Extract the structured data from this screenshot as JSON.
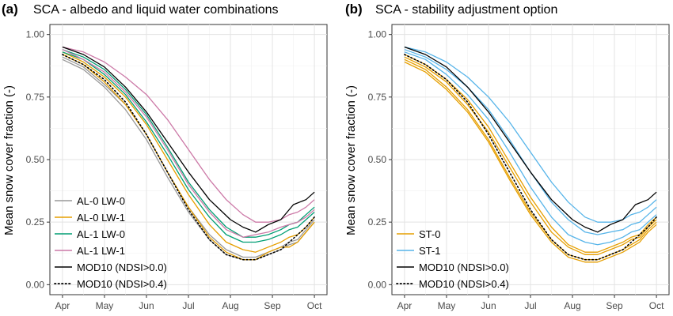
{
  "chart_data": [
    {
      "type": "line",
      "panel_label": "(a)",
      "title": "SCA - albedo and liquid water combinations",
      "xlabel": "",
      "ylabel": "Mean snow cover fraction (-)",
      "x_ticks": [
        "Apr",
        "May",
        "Jun",
        "Jul",
        "Aug",
        "Sep",
        "Oct"
      ],
      "xlim": [
        0,
        6
      ],
      "ylim": [
        -0.04,
        1.04
      ],
      "y_ticks": [
        "0.00",
        "0.25",
        "0.50",
        "0.75",
        "1.00"
      ],
      "y_tick_values": [
        0.0,
        0.25,
        0.5,
        0.75,
        1.0
      ],
      "grid": true,
      "legend_position": "bottom-left",
      "series": [
        {
          "name": "AL-0 LW-0",
          "color": "#999999",
          "style": "solid",
          "x": [
            0,
            0.5,
            1,
            1.5,
            2,
            2.5,
            3,
            3.5,
            3.9,
            4.3,
            4.6,
            4.9,
            5.2,
            5.4,
            5.6,
            5.8,
            6
          ],
          "y": [
            0.9,
            0.86,
            0.79,
            0.7,
            0.58,
            0.43,
            0.29,
            0.18,
            0.12,
            0.1,
            0.1,
            0.12,
            0.14,
            0.16,
            0.17,
            0.21,
            0.25
          ]
        },
        {
          "name": "AL-0 LW-0",
          "color": "#999999",
          "style": "solid",
          "x": [
            0,
            0.5,
            1,
            1.5,
            2,
            2.5,
            3,
            3.5,
            3.9,
            4.3,
            4.6,
            4.9,
            5.2,
            5.4,
            5.6,
            5.8,
            6
          ],
          "y": [
            0.91,
            0.87,
            0.8,
            0.72,
            0.6,
            0.45,
            0.31,
            0.2,
            0.14,
            0.11,
            0.11,
            0.13,
            0.15,
            0.17,
            0.18,
            0.22,
            0.26
          ]
        },
        {
          "name": "AL-0 LW-1",
          "color": "#E69F00",
          "style": "solid",
          "x": [
            0,
            0.5,
            1,
            1.5,
            2,
            2.5,
            3,
            3.5,
            3.9,
            4.3,
            4.6,
            4.9,
            5.2,
            5.4,
            5.6,
            5.8,
            6
          ],
          "y": [
            0.92,
            0.88,
            0.81,
            0.72,
            0.6,
            0.45,
            0.31,
            0.19,
            0.13,
            0.1,
            0.1,
            0.13,
            0.15,
            0.15,
            0.17,
            0.21,
            0.25
          ]
        },
        {
          "name": "AL-0 LW-1",
          "color": "#E69F00",
          "style": "solid",
          "x": [
            0,
            0.5,
            1,
            1.5,
            2,
            2.5,
            3,
            3.5,
            3.9,
            4.3,
            4.6,
            4.9,
            5.2,
            5.4,
            5.6,
            5.8,
            6
          ],
          "y": [
            0.93,
            0.89,
            0.83,
            0.75,
            0.64,
            0.5,
            0.36,
            0.24,
            0.17,
            0.14,
            0.13,
            0.15,
            0.17,
            0.19,
            0.2,
            0.23,
            0.27
          ]
        },
        {
          "name": "AL-1 LW-0",
          "color": "#009E73",
          "style": "solid",
          "x": [
            0,
            0.5,
            1,
            1.5,
            2,
            2.5,
            3,
            3.5,
            3.9,
            4.3,
            4.6,
            4.9,
            5.2,
            5.4,
            5.6,
            5.8,
            6
          ],
          "y": [
            0.93,
            0.9,
            0.84,
            0.76,
            0.65,
            0.52,
            0.38,
            0.27,
            0.2,
            0.17,
            0.17,
            0.18,
            0.2,
            0.22,
            0.23,
            0.26,
            0.29
          ]
        },
        {
          "name": "AL-1 LW-0",
          "color": "#009E73",
          "style": "solid",
          "x": [
            0,
            0.5,
            1,
            1.5,
            2,
            2.5,
            3,
            3.5,
            3.9,
            4.3,
            4.6,
            4.9,
            5.2,
            5.4,
            5.6,
            5.8,
            6
          ],
          "y": [
            0.94,
            0.91,
            0.86,
            0.78,
            0.68,
            0.55,
            0.41,
            0.3,
            0.23,
            0.19,
            0.19,
            0.2,
            0.22,
            0.24,
            0.25,
            0.28,
            0.31
          ]
        },
        {
          "name": "AL-1 LW-1",
          "color": "#CC79A7",
          "style": "solid",
          "x": [
            0,
            0.5,
            1,
            1.5,
            2,
            2.5,
            3,
            3.5,
            3.9,
            4.3,
            4.6,
            4.9,
            5.2,
            5.4,
            5.6,
            5.8,
            6
          ],
          "y": [
            0.94,
            0.9,
            0.85,
            0.77,
            0.67,
            0.54,
            0.4,
            0.29,
            0.22,
            0.19,
            0.2,
            0.21,
            0.23,
            0.24,
            0.25,
            0.27,
            0.3
          ]
        },
        {
          "name": "AL-1 LW-1",
          "color": "#CC79A7",
          "style": "solid",
          "x": [
            0,
            0.5,
            1,
            1.5,
            2,
            2.5,
            3,
            3.5,
            3.9,
            4.3,
            4.6,
            4.9,
            5.2,
            5.4,
            5.6,
            5.8,
            6
          ],
          "y": [
            0.95,
            0.93,
            0.89,
            0.83,
            0.76,
            0.66,
            0.54,
            0.42,
            0.34,
            0.28,
            0.25,
            0.25,
            0.26,
            0.28,
            0.29,
            0.31,
            0.34
          ]
        },
        {
          "name": "MOD10 (NDSI>0.0)",
          "color": "#000000",
          "style": "solid",
          "x": [
            0,
            0.5,
            1,
            1.5,
            2,
            2.5,
            3,
            3.5,
            4,
            4.3,
            4.6,
            4.9,
            5.2,
            5.5,
            5.8,
            6
          ],
          "y": [
            0.95,
            0.92,
            0.87,
            0.79,
            0.69,
            0.57,
            0.45,
            0.34,
            0.26,
            0.23,
            0.21,
            0.24,
            0.26,
            0.32,
            0.34,
            0.37
          ]
        },
        {
          "name": "MOD10 (NDSI>0.4)",
          "color": "#000000",
          "style": "dotted",
          "x": [
            0,
            0.5,
            1,
            1.5,
            2,
            2.5,
            3,
            3.5,
            3.9,
            4.3,
            4.6,
            4.9,
            5.2,
            5.4,
            5.6,
            5.8,
            6
          ],
          "y": [
            0.92,
            0.88,
            0.82,
            0.73,
            0.6,
            0.45,
            0.3,
            0.18,
            0.12,
            0.1,
            0.1,
            0.12,
            0.14,
            0.17,
            0.2,
            0.23,
            0.27
          ]
        }
      ],
      "legend": [
        {
          "label": "AL-0 LW-0",
          "color": "#999999",
          "style": "solid"
        },
        {
          "label": "AL-0 LW-1",
          "color": "#E69F00",
          "style": "solid"
        },
        {
          "label": "AL-1 LW-0",
          "color": "#009E73",
          "style": "solid"
        },
        {
          "label": "AL-1 LW-1",
          "color": "#CC79A7",
          "style": "solid"
        },
        {
          "label": "MOD10 (NDSI>0.0)",
          "color": "#000000",
          "style": "solid"
        },
        {
          "label": "MOD10 (NDSI>0.4)",
          "color": "#000000",
          "style": "dotted"
        }
      ]
    },
    {
      "type": "line",
      "panel_label": "(b)",
      "title": "SCA - stability adjustment option",
      "xlabel": "",
      "ylabel": "Mean snow cover fraction (-)",
      "x_ticks": [
        "Apr",
        "May",
        "Jun",
        "Jul",
        "Aug",
        "Sep",
        "Oct"
      ],
      "xlim": [
        0,
        6
      ],
      "ylim": [
        -0.04,
        1.04
      ],
      "y_ticks": [
        "0.00",
        "0.25",
        "0.50",
        "0.75",
        "1.00"
      ],
      "y_tick_values": [
        0.0,
        0.25,
        0.5,
        0.75,
        1.0
      ],
      "grid": true,
      "legend_position": "bottom-left",
      "series": [
        {
          "name": "ST-0",
          "color": "#E69F00",
          "style": "solid",
          "x": [
            0,
            0.5,
            1,
            1.5,
            2,
            2.5,
            3,
            3.5,
            3.9,
            4.3,
            4.6,
            4.9,
            5.2,
            5.4,
            5.6,
            5.8,
            6
          ],
          "y": [
            0.89,
            0.85,
            0.78,
            0.69,
            0.57,
            0.42,
            0.28,
            0.17,
            0.11,
            0.09,
            0.09,
            0.11,
            0.13,
            0.15,
            0.17,
            0.21,
            0.24
          ]
        },
        {
          "name": "ST-0",
          "color": "#E69F00",
          "style": "solid",
          "x": [
            0,
            0.5,
            1,
            1.5,
            2,
            2.5,
            3,
            3.5,
            3.9,
            4.3,
            4.6,
            4.9,
            5.2,
            5.4,
            5.6,
            5.8,
            6
          ],
          "y": [
            0.9,
            0.86,
            0.79,
            0.7,
            0.58,
            0.43,
            0.29,
            0.18,
            0.12,
            0.1,
            0.1,
            0.12,
            0.14,
            0.16,
            0.18,
            0.22,
            0.25
          ]
        },
        {
          "name": "ST-0",
          "color": "#E69F00",
          "style": "solid",
          "x": [
            0,
            0.5,
            1,
            1.5,
            2,
            2.5,
            3,
            3.5,
            3.9,
            4.3,
            4.6,
            4.9,
            5.2,
            5.4,
            5.6,
            5.8,
            6
          ],
          "y": [
            0.91,
            0.87,
            0.81,
            0.72,
            0.61,
            0.47,
            0.33,
            0.21,
            0.15,
            0.12,
            0.12,
            0.14,
            0.16,
            0.18,
            0.19,
            0.23,
            0.26
          ]
        },
        {
          "name": "ST-0",
          "color": "#E69F00",
          "style": "solid",
          "x": [
            0,
            0.5,
            1,
            1.5,
            2,
            2.5,
            3,
            3.5,
            3.9,
            4.3,
            4.6,
            4.9,
            5.2,
            5.4,
            5.6,
            5.8,
            6
          ],
          "y": [
            0.92,
            0.88,
            0.82,
            0.74,
            0.63,
            0.49,
            0.35,
            0.23,
            0.16,
            0.13,
            0.13,
            0.15,
            0.17,
            0.19,
            0.2,
            0.24,
            0.27
          ]
        },
        {
          "name": "ST-1",
          "color": "#56B4E9",
          "style": "solid",
          "x": [
            0,
            0.5,
            1,
            1.5,
            2,
            2.5,
            3,
            3.5,
            3.9,
            4.3,
            4.6,
            4.9,
            5.2,
            5.4,
            5.6,
            5.8,
            6
          ],
          "y": [
            0.93,
            0.9,
            0.84,
            0.76,
            0.66,
            0.53,
            0.39,
            0.27,
            0.2,
            0.17,
            0.16,
            0.17,
            0.19,
            0.21,
            0.22,
            0.25,
            0.28
          ]
        },
        {
          "name": "ST-1",
          "color": "#56B4E9",
          "style": "solid",
          "x": [
            0,
            0.5,
            1,
            1.5,
            2,
            2.5,
            3,
            3.5,
            3.9,
            4.3,
            4.6,
            4.9,
            5.2,
            5.4,
            5.6,
            5.8,
            6
          ],
          "y": [
            0.94,
            0.91,
            0.86,
            0.79,
            0.7,
            0.58,
            0.45,
            0.33,
            0.26,
            0.21,
            0.2,
            0.21,
            0.22,
            0.24,
            0.25,
            0.28,
            0.31
          ]
        },
        {
          "name": "ST-1",
          "color": "#56B4E9",
          "style": "solid",
          "x": [
            0,
            0.5,
            1,
            1.5,
            2,
            2.5,
            3,
            3.5,
            3.9,
            4.3,
            4.6,
            4.9,
            5.2,
            5.4,
            5.6,
            5.8,
            6
          ],
          "y": [
            0.95,
            0.93,
            0.89,
            0.83,
            0.75,
            0.65,
            0.53,
            0.41,
            0.33,
            0.27,
            0.25,
            0.25,
            0.26,
            0.28,
            0.29,
            0.31,
            0.34
          ]
        },
        {
          "name": "MOD10 (NDSI>0.0)",
          "color": "#000000",
          "style": "solid",
          "x": [
            0,
            0.5,
            1,
            1.5,
            2,
            2.5,
            3,
            3.5,
            4,
            4.3,
            4.6,
            4.9,
            5.2,
            5.5,
            5.8,
            6
          ],
          "y": [
            0.95,
            0.92,
            0.87,
            0.79,
            0.69,
            0.57,
            0.45,
            0.34,
            0.26,
            0.23,
            0.21,
            0.24,
            0.26,
            0.32,
            0.34,
            0.37
          ]
        },
        {
          "name": "MOD10 (NDSI>0.4)",
          "color": "#000000",
          "style": "dotted",
          "x": [
            0,
            0.5,
            1,
            1.5,
            2,
            2.5,
            3,
            3.5,
            3.9,
            4.3,
            4.6,
            4.9,
            5.2,
            5.4,
            5.6,
            5.8,
            6
          ],
          "y": [
            0.92,
            0.88,
            0.82,
            0.73,
            0.6,
            0.45,
            0.3,
            0.18,
            0.12,
            0.1,
            0.1,
            0.12,
            0.14,
            0.17,
            0.2,
            0.23,
            0.27
          ]
        }
      ],
      "legend": [
        {
          "label": "ST-0",
          "color": "#E69F00",
          "style": "solid"
        },
        {
          "label": "ST-1",
          "color": "#56B4E9",
          "style": "solid"
        },
        {
          "label": "MOD10 (NDSI>0.0)",
          "color": "#000000",
          "style": "solid"
        },
        {
          "label": "MOD10 (NDSI>0.4)",
          "color": "#000000",
          "style": "dotted"
        }
      ]
    }
  ]
}
